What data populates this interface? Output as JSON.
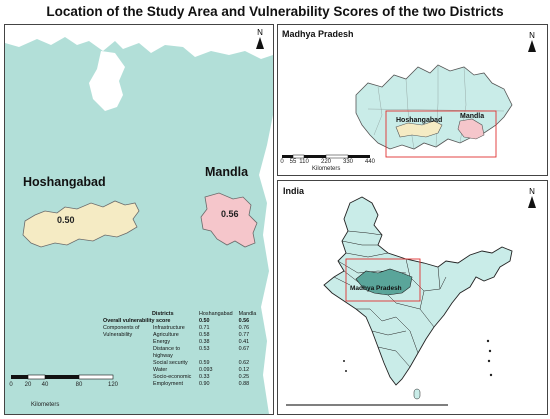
{
  "title": "Location of the Study Area and Vulnerability Scores of the two Districts",
  "main_map": {
    "districts": [
      {
        "name": "Hoshangabad",
        "score_label": "0.50",
        "fill": "#f5ebc4"
      },
      {
        "name": "Mandla",
        "score_label": "0.56",
        "fill": "#f5c6cb"
      }
    ],
    "background_fill": "#b2dfd8",
    "north_label": "N",
    "scale": {
      "ticks": [
        "0",
        "20",
        "40",
        "80",
        "120"
      ],
      "unit": "Kilometers"
    }
  },
  "table": {
    "headers": {
      "col1": "Districts",
      "col2": "Hoshangabad",
      "col3": "Mandla"
    },
    "overall": {
      "label": "Overall vulnerability score",
      "h": "0.50",
      "m": "0.56"
    },
    "group_label": "Components of Vulnerability",
    "rows": [
      {
        "label": "Infrastructure",
        "h": "0.71",
        "m": "0.76"
      },
      {
        "label": "Agriculture",
        "h": "0.58",
        "m": "0.77"
      },
      {
        "label": "Energy",
        "h": "0.38",
        "m": "0.41"
      },
      {
        "label": "Distance to highway",
        "h": "0.53",
        "m": "0.67"
      },
      {
        "label": "Social security",
        "h": "0.59",
        "m": "0.62"
      },
      {
        "label": "Water",
        "h": "0.093",
        "m": "0.12"
      },
      {
        "label": "Socio-economic",
        "h": "0.33",
        "m": "0.25"
      },
      {
        "label": "Employment",
        "h": "0.90",
        "m": "0.88"
      }
    ]
  },
  "mp_map": {
    "title": "Madhya Pradesh",
    "labels": [
      "Hoshangabad",
      "Mandla"
    ],
    "north_label": "N",
    "scale": {
      "ticks": [
        "0",
        "55",
        "110",
        "220",
        "330",
        "440"
      ],
      "unit": "Kilometers"
    }
  },
  "india_map": {
    "title": "India",
    "highlight_label": "Madhya Pradesh",
    "north_label": "N",
    "fill": "#c9ece8"
  }
}
